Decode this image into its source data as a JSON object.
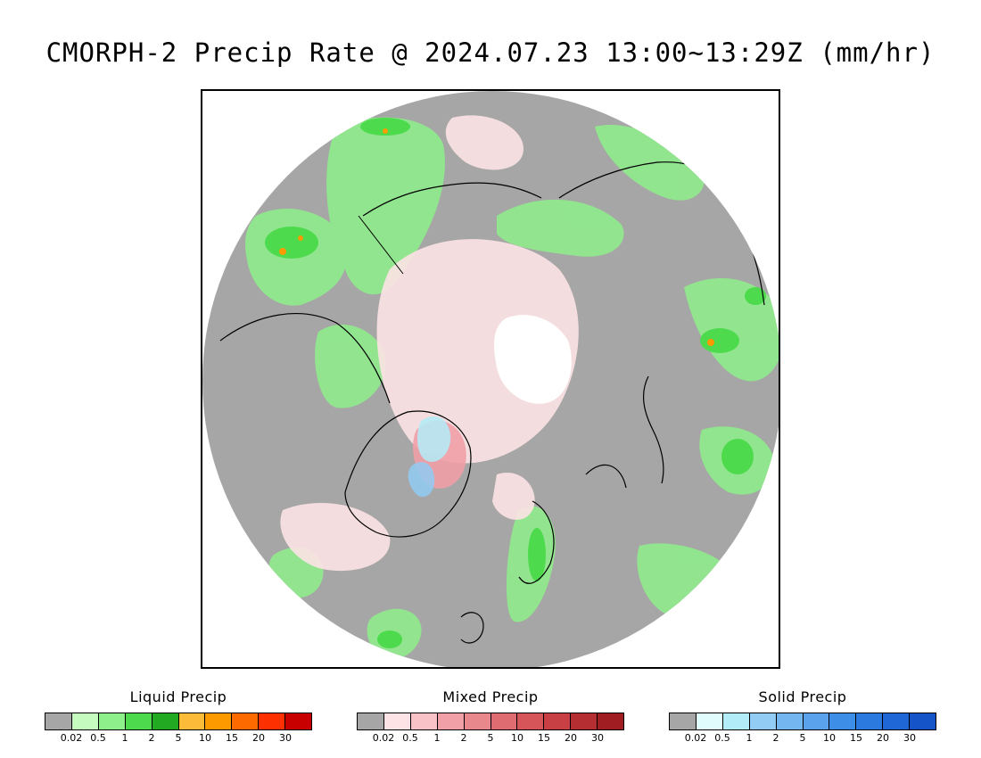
{
  "title": "CMORPH-2 Precip Rate @ 2024.07.23 13:00~13:29Z (mm/hr)",
  "map": {
    "projection": "polar-stereographic",
    "colors": {
      "no_precip": "#a6a6a6",
      "outside": "#ffffff",
      "coast": "#000000",
      "no_data": "#ffffff"
    }
  },
  "legends": [
    {
      "title": "Liquid Precip",
      "ticks": [
        "0.02",
        "0.5",
        "1",
        "2",
        "5",
        "10",
        "15",
        "20",
        "30"
      ],
      "colors": [
        "#a6a6a6",
        "#c6fbc0",
        "#8ef08a",
        "#4ddb4d",
        "#22aa22",
        "#fcbc3a",
        "#fc9a00",
        "#fc6a00",
        "#fc3000",
        "#c80000"
      ]
    },
    {
      "title": "Mixed Precip",
      "ticks": [
        "0.02",
        "0.5",
        "1",
        "2",
        "5",
        "10",
        "15",
        "20",
        "30"
      ],
      "colors": [
        "#a6a6a6",
        "#fde3e6",
        "#f8c2c6",
        "#f0a0a6",
        "#e8888c",
        "#de6c70",
        "#d65558",
        "#c84044",
        "#b52e32",
        "#a01e22"
      ]
    },
    {
      "title": "Solid Precip",
      "ticks": [
        "0.02",
        "0.5",
        "1",
        "2",
        "5",
        "10",
        "15",
        "20",
        "30"
      ],
      "colors": [
        "#a6a6a6",
        "#e0fcfc",
        "#b2ecf8",
        "#92ccf4",
        "#74b6f0",
        "#5aa2ec",
        "#3c8ee6",
        "#2a7ae0",
        "#1f66d6",
        "#1554c8"
      ]
    }
  ]
}
